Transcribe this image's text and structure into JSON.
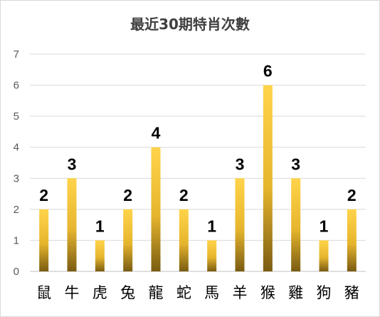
{
  "chart_data": {
    "type": "bar",
    "title": "最近30期特肖次數",
    "categories": [
      "鼠",
      "牛",
      "虎",
      "兔",
      "龍",
      "蛇",
      "馬",
      "羊",
      "猴",
      "雞",
      "狗",
      "豬"
    ],
    "values": [
      2,
      3,
      1,
      2,
      4,
      2,
      1,
      3,
      6,
      3,
      1,
      2
    ],
    "xlabel": "",
    "ylabel": "",
    "ylim": [
      0,
      7
    ],
    "yticks": [
      "0",
      "1",
      "2",
      "3",
      "4",
      "5",
      "6",
      "7"
    ],
    "grid": true,
    "legend": "none",
    "data_labels": true
  },
  "colors": {
    "bar_top": "#ffd44a",
    "bar_mid": "#e6b52e",
    "bar_bottom": "#7a5c12",
    "gridline": "#d9d9d9"
  }
}
